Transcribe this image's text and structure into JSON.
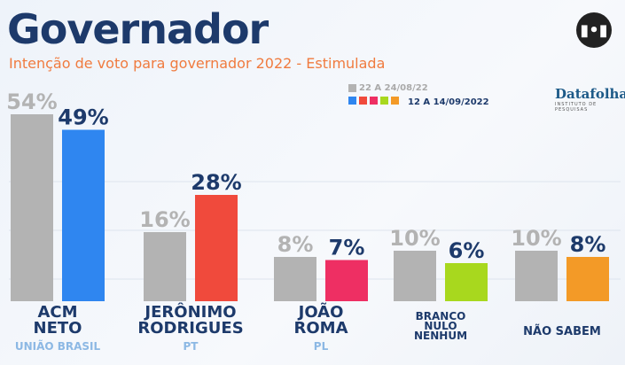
{
  "header": {
    "title": "Governador",
    "subtitle": "Intenção de voto para governador 2022 - Estimulada",
    "logo": "podcast-logo-icon",
    "source": "Datafolha",
    "source_sub": "INSTITUTO DE PESQUISAS"
  },
  "chart_data": {
    "type": "bar",
    "categories": [
      "ACM NETO",
      "JERÔNIMO RODRIGUES",
      "JOÃO ROMA",
      "BRANCO NULO NENHUM",
      "NÃO SABEM"
    ],
    "parties": [
      "UNIÃO BRASIL",
      "PT",
      "PL",
      "",
      ""
    ],
    "series": [
      {
        "name": "22 A 24/08/22",
        "values": [
          54,
          16,
          8,
          10,
          10
        ],
        "color": "#b3b3b3"
      },
      {
        "name": "12 A 14/09/2022",
        "values": [
          49,
          28,
          7,
          6,
          8
        ],
        "colors": [
          "#2f86f0",
          "#f04a3c",
          "#ee2f63",
          "#a8d81e",
          "#f39a27"
        ]
      }
    ],
    "ylim": [
      0,
      60
    ],
    "grid": true,
    "legend": "top-right"
  }
}
